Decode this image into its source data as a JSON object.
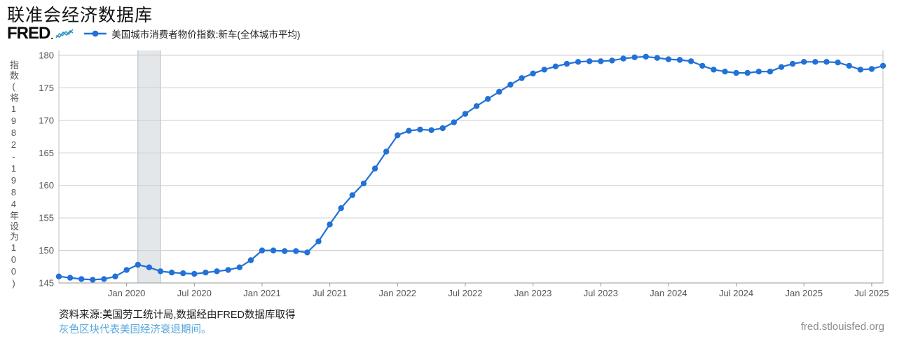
{
  "page": {
    "title": "联准会经济数据库"
  },
  "header": {
    "logo_text": "FRED",
    "logo_suffix": ".",
    "logo_icon": "line-chart-squiggle",
    "logo_icon_colors": [
      "#2d7ff2",
      "#3fae8f"
    ]
  },
  "chart_data": {
    "type": "line",
    "title": "美国城市消费者物价指数:新车(全体城市平均)",
    "ylabel": "指数(将1982-1984年设为100)",
    "ylim": [
      145,
      180
    ],
    "yticks": [
      145,
      150,
      155,
      160,
      165,
      170,
      175,
      180
    ],
    "grid": true,
    "legend_position": "top",
    "x_unit": "month",
    "x_start": "2019-07",
    "x_end": "2025-08",
    "xtick_first_index": 6,
    "xtick_step": 6,
    "xtick_labels": [
      "Jan 2020",
      "Jul 2020",
      "Jan 2021",
      "Jul 2021",
      "Jan 2022",
      "Jul 2022",
      "Jan 2023",
      "Jul 2023",
      "Jan 2024",
      "Jul 2024",
      "Jan 2025",
      "Jul 2025"
    ],
    "recession_band": {
      "from": "2020-02",
      "to": "2020-04"
    },
    "series": [
      {
        "name": "美国城市消费者物价指数:新车(全体城市平均)",
        "color": "#2171d6",
        "values": [
          146.0,
          145.8,
          145.6,
          145.5,
          145.6,
          146.0,
          147.0,
          147.8,
          147.4,
          146.8,
          146.6,
          146.5,
          146.4,
          146.6,
          146.8,
          147.0,
          147.4,
          148.5,
          150.0,
          150.0,
          149.9,
          149.9,
          149.7,
          151.4,
          154.0,
          156.5,
          158.5,
          160.3,
          162.6,
          165.2,
          167.7,
          168.4,
          168.6,
          168.5,
          168.8,
          169.7,
          171.0,
          172.2,
          173.3,
          174.4,
          175.5,
          176.5,
          177.2,
          177.8,
          178.3,
          178.7,
          179.0,
          179.1,
          179.1,
          179.2,
          179.5,
          179.7,
          179.8,
          179.6,
          179.4,
          179.3,
          179.1,
          178.4,
          177.8,
          177.5,
          177.3,
          177.3,
          177.5,
          177.5,
          178.2,
          178.7,
          179.0,
          179.0,
          179.0,
          178.9,
          178.4,
          177.8,
          177.9,
          178.4
        ]
      }
    ]
  },
  "colors": {
    "line": "#2171d6",
    "recession_band": "#e4e7ea",
    "recession_band_edge": "#c9cdd3",
    "grid": "#cccccc",
    "axis": "#999999",
    "tick_label": "#555555",
    "plot_border": "#bfbfbf"
  },
  "footer": {
    "source_line": "资料来源:美国劳工统计局,数据经由FRED数据库取得",
    "recession_note": "灰色区块代表美国经济衰退期间。",
    "site": "fred.stlouisfed.org"
  }
}
